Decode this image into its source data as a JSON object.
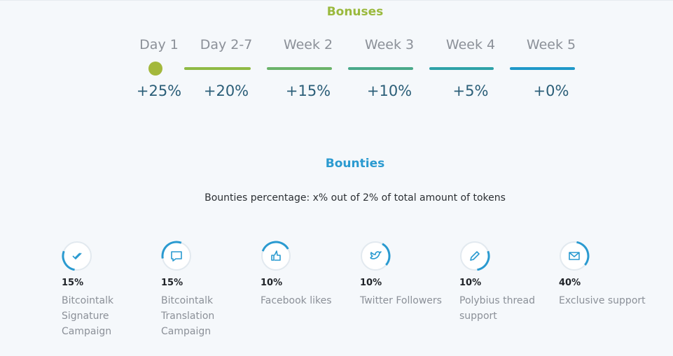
{
  "bonuses": {
    "title": "Bonuses",
    "periods": [
      {
        "label": "Day 1",
        "bonus": "+25%"
      },
      {
        "label": "Day 2-7",
        "bonus": "+20%"
      },
      {
        "label": "Week 2",
        "bonus": "+15%"
      },
      {
        "label": "Week 3",
        "bonus": "+10%"
      },
      {
        "label": "Week 4",
        "bonus": "+5%"
      },
      {
        "label": "Week 5",
        "bonus": "+0%"
      }
    ]
  },
  "bounties": {
    "title": "Bounties",
    "subtitle": "Bounties percentage: x% out of 2% of total amount of tokens",
    "items": [
      {
        "percent": "15%",
        "label": [
          "Bitcointalk",
          "Signature",
          "Campaign"
        ]
      },
      {
        "percent": "15%",
        "label": [
          "Bitcointalk",
          "Translation",
          "Campaign"
        ]
      },
      {
        "percent": "10%",
        "label": [
          "Facebook likes"
        ]
      },
      {
        "percent": "10%",
        "label": [
          "Twitter Followers"
        ]
      },
      {
        "percent": "10%",
        "label": [
          "Polybius thread",
          "support"
        ]
      },
      {
        "percent": "40%",
        "label": [
          "Exclusive support"
        ]
      }
    ]
  }
}
